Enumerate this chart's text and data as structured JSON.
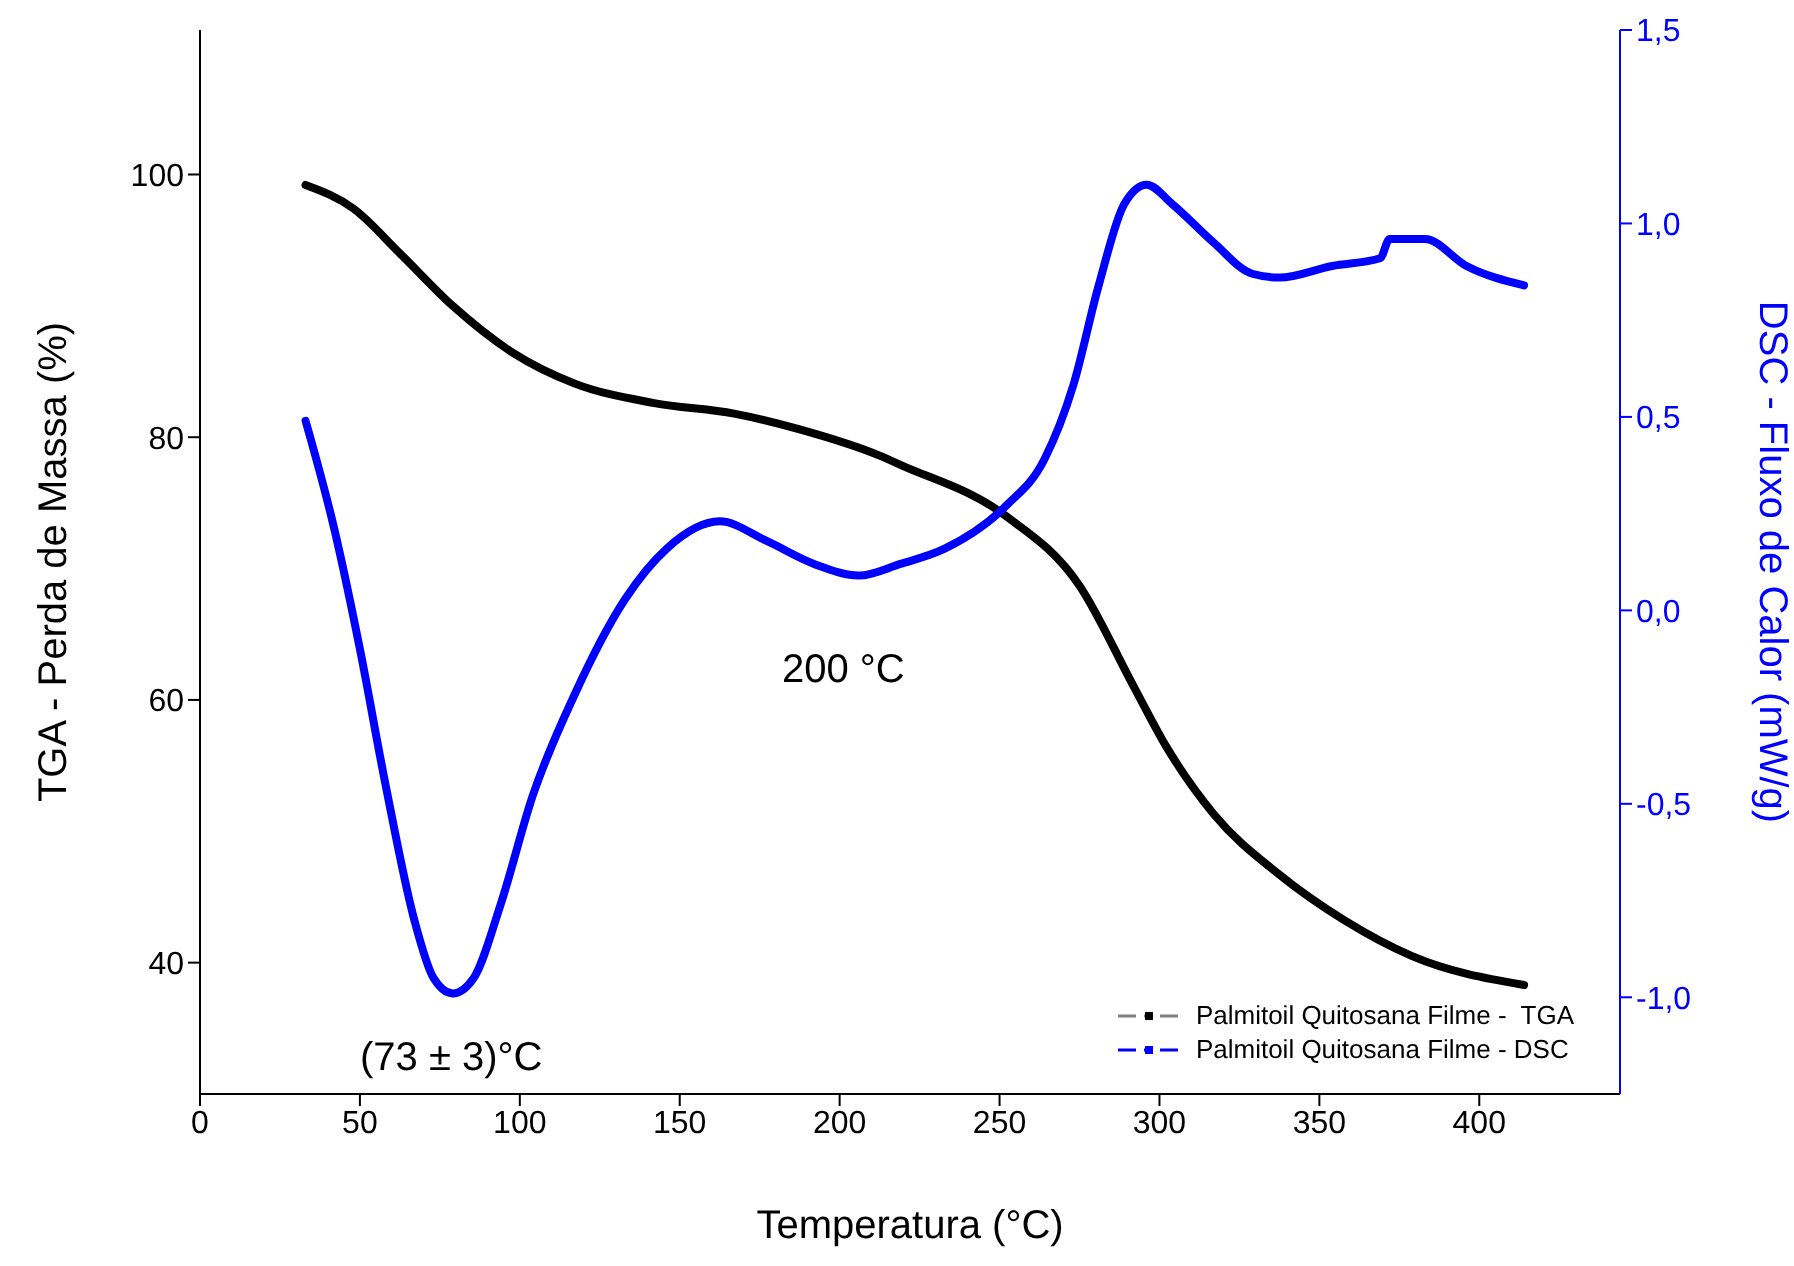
{
  "chart_data": {
    "type": "line",
    "xlabel": "Temperatura (°C)",
    "ylabel": "TGA - Perda de Massa (%)",
    "y2label": "DSC - Fluxo de Calor (mW/g)",
    "xlim": [
      0,
      444
    ],
    "xticks": [
      0,
      50,
      100,
      150,
      200,
      250,
      300,
      350,
      400
    ],
    "ylim": [
      30,
      111
    ],
    "yticks": [
      40,
      60,
      80,
      100
    ],
    "y2lim": [
      -1.25,
      1.5
    ],
    "y2ticks": [
      {
        "value": -1,
        "label": "-1,0"
      },
      {
        "value": -0.5,
        "label": "-0,5"
      },
      {
        "value": 0,
        "label": "0,0"
      },
      {
        "value": 0.5,
        "label": "0,5"
      },
      {
        "value": 1,
        "label": "1,0"
      },
      {
        "value": 1.5,
        "label": "1,5"
      }
    ],
    "legend": "bottom right",
    "marker": "none",
    "line_style": "solid",
    "annotations": [
      "(73 ± 3)°C",
      "200 °C"
    ],
    "series": [
      {
        "name": "Palmitoil Quitosana Filme -  TGA",
        "color": "#000000",
        "x": [
          33,
          48,
          62.5,
          79,
          98,
          117,
          142,
          167,
          187.5,
          212.5,
          219,
          252,
          275,
          292,
          302,
          317,
          337.5,
          358,
          379,
          414
        ],
        "values": [
          99.2,
          97.4,
          94,
          90,
          86.4,
          84.1,
          82.6,
          81.8,
          80.6,
          78.6,
          77.9,
          74,
          68.7,
          61,
          56.5,
          51.3,
          46.7,
          43.2,
          40.5,
          38.3
        ]
      },
      {
        "name": "Palmitoil Quitosana Filme - DSC",
        "color": "#0000ff",
        "axis": "y2",
        "x": [
          33,
          42,
          50,
          58,
          67,
          73,
          79,
          85.6,
          94,
          104,
          117,
          133,
          146,
          162.5,
          177,
          192,
          206,
          219,
          233,
          252,
          264,
          273,
          281,
          289,
          296,
          304,
          317,
          329,
          337.5,
          354,
          369,
          372,
          383,
          396,
          414
        ],
        "values": [
          0.49,
          0.21,
          -0.1,
          -0.45,
          -0.8,
          -0.95,
          -0.99,
          -0.95,
          -0.76,
          -0.48,
          -0.22,
          0.03,
          0.16,
          0.23,
          0.18,
          0.12,
          0.09,
          0.12,
          0.16,
          0.27,
          0.39,
          0.58,
          0.84,
          1.05,
          1.1,
          1.05,
          0.95,
          0.87,
          0.86,
          0.89,
          0.91,
          0.96,
          0.96,
          0.89,
          0.84
        ]
      }
    ]
  }
}
